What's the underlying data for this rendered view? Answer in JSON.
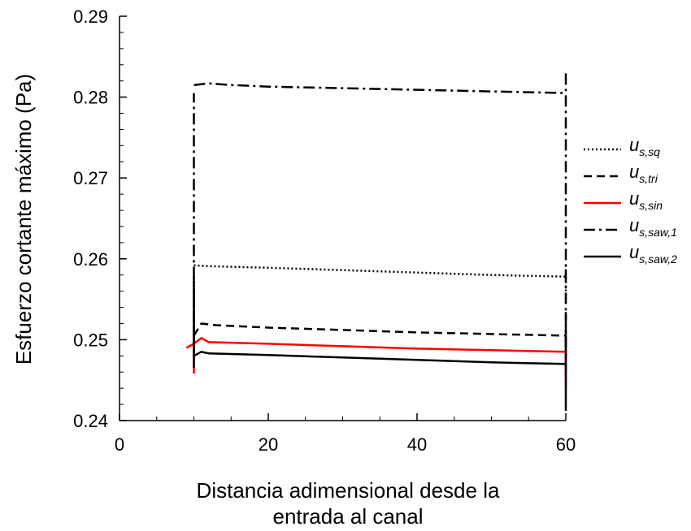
{
  "chart_data": {
    "type": "line",
    "xlabel": [
      "Distancia adimensional desde la",
      "entrada al canal"
    ],
    "ylabel": "Esfuerzo cortante máximo (Pa)",
    "xlim": [
      0,
      60
    ],
    "ylim": [
      0.24,
      0.29
    ],
    "xticks": [
      0,
      20,
      40,
      60
    ],
    "xtick_labels": [
      "0",
      "20",
      "40",
      "60"
    ],
    "yticks": [
      0.24,
      0.25,
      0.26,
      0.27,
      0.28,
      0.29
    ],
    "ytick_labels": [
      "0.24",
      "0.25",
      "0.26",
      "0.27",
      "0.28",
      "0.29"
    ],
    "grid": false,
    "legend_position": "right",
    "series": [
      {
        "name": "u_s,sq",
        "legend_main": "u",
        "legend_sub": "s,sq",
        "color": "#000000",
        "style": "dotted",
        "x": [
          10,
          12,
          20,
          30,
          40,
          50,
          60
        ],
        "y": [
          0.2592,
          0.2591,
          0.2589,
          0.2586,
          0.2583,
          0.258,
          0.2578
        ],
        "entry_spike": [
          10,
          0.2485,
          0.2575
        ],
        "exit_spike": [
          60,
          0.2545,
          0.2595
        ]
      },
      {
        "name": "u_s,tri",
        "legend_main": "u",
        "legend_sub": "s,tri",
        "color": "#000000",
        "style": "dashed",
        "x": [
          10,
          11,
          13,
          20,
          30,
          40,
          50,
          60
        ],
        "y": [
          0.2505,
          0.252,
          0.2518,
          0.2515,
          0.2512,
          0.2509,
          0.2507,
          0.2505
        ],
        "entry_spike": [
          10,
          0.2475,
          0.256
        ],
        "exit_spike": [
          60,
          0.246,
          0.254
        ]
      },
      {
        "name": "u_s,sin",
        "legend_main": "u",
        "legend_sub": "s,sin",
        "color": "#ff0000",
        "style": "solid",
        "x": [
          9,
          10,
          11,
          12,
          20,
          30,
          40,
          50,
          60
        ],
        "y": [
          0.249,
          0.2495,
          0.2502,
          0.2497,
          0.2495,
          0.2492,
          0.2489,
          0.2487,
          0.2485
        ],
        "entry_spike": [
          10,
          0.2458,
          0.2505
        ],
        "exit_spike": [
          60,
          0.244,
          0.2505
        ]
      },
      {
        "name": "u_s,saw,1",
        "legend_main": "u",
        "legend_sub": "s,saw,1",
        "color": "#000000",
        "style": "dashdot",
        "x": [
          10,
          12,
          15,
          20,
          30,
          40,
          50,
          60
        ],
        "y": [
          0.2815,
          0.2817,
          0.2815,
          0.2813,
          0.2811,
          0.2809,
          0.2807,
          0.2805
        ],
        "entry_spike": [
          10,
          0.2495,
          0.2805
        ],
        "exit_spike": [
          60,
          0.249,
          0.2832
        ]
      },
      {
        "name": "u_s,saw,2",
        "legend_main": "u",
        "legend_sub": "s,saw,2",
        "color": "#000000",
        "style": "solid",
        "x": [
          10,
          11,
          12,
          20,
          30,
          40,
          50,
          60
        ],
        "y": [
          0.248,
          0.2485,
          0.2483,
          0.2481,
          0.2478,
          0.2475,
          0.2472,
          0.247
        ],
        "entry_spike": [
          10,
          0.2465,
          0.2578
        ],
        "exit_spike": [
          60,
          0.2412,
          0.251
        ]
      }
    ]
  }
}
